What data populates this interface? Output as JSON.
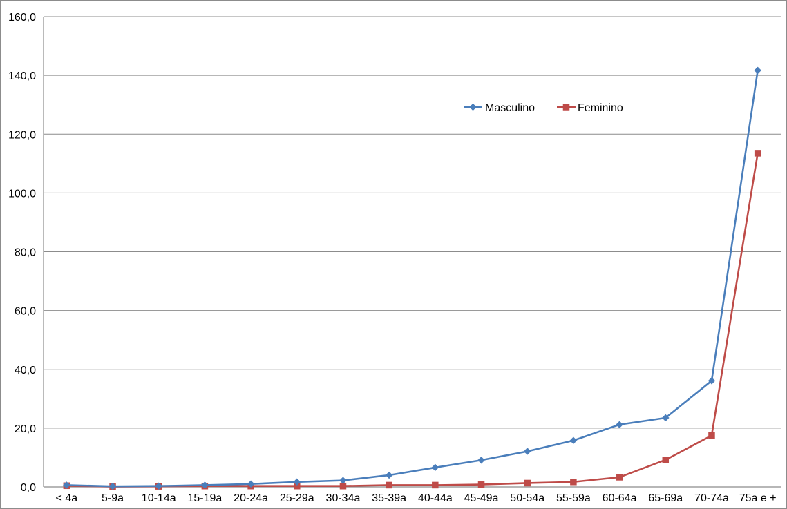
{
  "chart_data": {
    "type": "line",
    "title": "",
    "xlabel": "",
    "ylabel": "",
    "categories": [
      "< 4a",
      "5-9a",
      "10-14a",
      "15-19a",
      "20-24a",
      "25-29a",
      "30-34a",
      "35-39a",
      "40-44a",
      "45-49a",
      "50-54a",
      "55-59a",
      "60-64a",
      "65-69a",
      "70-74a",
      "75a e +"
    ],
    "ylim": [
      0,
      160
    ],
    "yticks": [
      "0,0",
      "20,0",
      "40,0",
      "60,0",
      "80,0",
      "100,0",
      "120,0",
      "140,0",
      "160,0"
    ],
    "grid": "horizontal",
    "legend_position": "top-right",
    "series": [
      {
        "name": "Masculino",
        "color": "#4A7EBB",
        "marker": "diamond",
        "values": [
          0.6,
          0.2,
          0.3,
          0.6,
          1.0,
          1.7,
          2.2,
          4.0,
          6.6,
          9.1,
          12.1,
          15.8,
          21.2,
          23.5,
          36.1,
          141.7
        ]
      },
      {
        "name": "Feminino",
        "color": "#BE4B48",
        "marker": "square",
        "values": [
          0.4,
          0.1,
          0.2,
          0.3,
          0.3,
          0.3,
          0.3,
          0.6,
          0.6,
          0.8,
          1.3,
          1.7,
          3.3,
          9.2,
          17.5,
          113.5
        ]
      }
    ]
  }
}
